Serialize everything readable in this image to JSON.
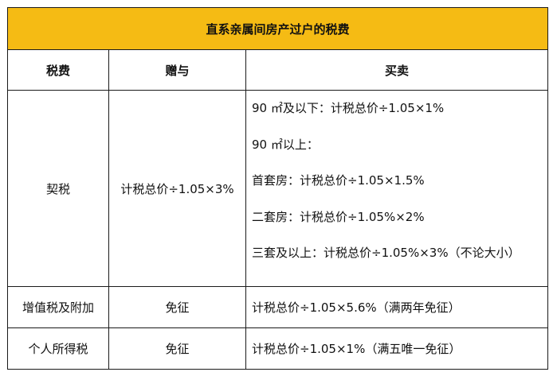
{
  "table": {
    "title": "直系亲属间房产过户的税费",
    "headers": [
      "税费",
      "赠与",
      "买卖"
    ],
    "rows": [
      {
        "tax": "契税",
        "gift": "计税总价÷1.05×3%",
        "sale": [
          "90 ㎡及以下：计税总价÷1.05×1%",
          "90 ㎡以上：",
          "首套房：计税总价÷1.05×1.5%",
          "二套房：计税总价÷1.05%×2%",
          "三套及以上：计税总价÷1.05%×3%（不论大小）"
        ]
      },
      {
        "tax": "增值税及附加",
        "gift": "免征",
        "sale": "计税总价÷1.05×5.6%（满两年免征）"
      },
      {
        "tax": "个人所得税",
        "gift": "免征",
        "sale": "计税总价÷1.05×1%（满五唯一免征）"
      }
    ]
  },
  "colors": {
    "title_background": "#f5bb14",
    "border": "#1a1a1a"
  }
}
